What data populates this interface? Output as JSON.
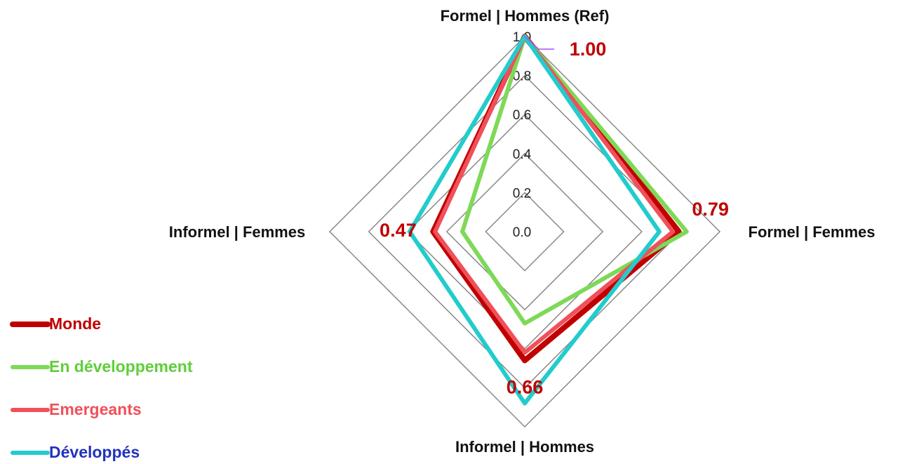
{
  "chart_data": {
    "type": "radar",
    "categories": [
      "Formel | Hommes (Ref)",
      "Formel | Femmes",
      "Informel | Hommes",
      "Informel | Femmes"
    ],
    "rlim": [
      0,
      1
    ],
    "rticks": [
      {
        "value": 0,
        "label": "0.0"
      },
      0.2,
      0.4,
      0.6,
      0.8,
      {
        "value": 1,
        "label": "1.0"
      }
    ],
    "grid": true,
    "legend": "bottom-left",
    "series": [
      {
        "name": "Monde",
        "color": "#c00000",
        "legend_text_color": "#c00000",
        "values": [
          1.0,
          0.79,
          0.66,
          0.47
        ],
        "value_labels": [
          "1.00",
          "0.79",
          "0.66",
          "0.47"
        ]
      },
      {
        "name": "En développement",
        "color": "#7ed957",
        "legend_text_color": "#5fcf3a",
        "values": [
          1.0,
          0.83,
          0.47,
          0.32
        ]
      },
      {
        "name": "Emergeants",
        "color": "#f0505a",
        "legend_text_color": "#f0505a",
        "values": [
          1.0,
          0.76,
          0.62,
          0.46
        ]
      },
      {
        "name": "Développés",
        "color": "#22cccc",
        "legend_text_color": "#2233bb",
        "values": [
          1.0,
          0.69,
          0.88,
          0.59
        ]
      }
    ]
  }
}
